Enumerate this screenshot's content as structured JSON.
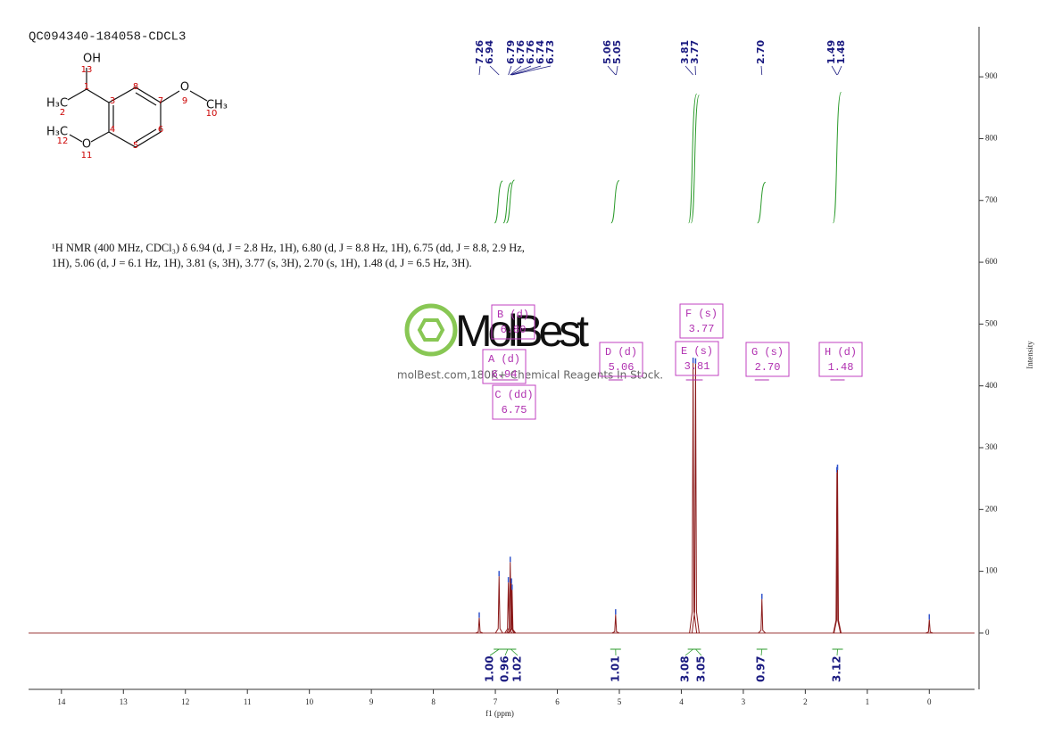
{
  "title": "QC094340-184058-CDCL3",
  "description": [
    "¹H NMR (400 MHz, CDCl₃) δ 6.94 (d, J = 2.8 Hz, 1H), 6.80 (d, J = 8.8 Hz, 1H), 6.75 (dd, J = 8.8, 2.9 Hz,",
    "1H), 5.06 (d, J = 6.1 Hz, 1H), 3.81 (s, 3H), 3.77 (s, 3H), 2.70 (s, 1H), 1.48 (d, J = 6.5 Hz, 3H)."
  ],
  "structure": {
    "atoms": [
      "OH",
      "13",
      "1",
      "H₃C",
      "2",
      "3",
      "8",
      "7",
      "O",
      "9",
      "CH₃",
      "10",
      "H₃C",
      "12",
      "4",
      "6",
      "O",
      "11",
      "5"
    ]
  },
  "watermark": {
    "brand": "MolBest",
    "tagline": "molBest.com,180K+ Chemical Reagents In Stock."
  },
  "chart_data": {
    "type": "spectrum",
    "xlabel": "f1 (ppm)",
    "ylabel": "Intensity",
    "color": "#8b1a1a",
    "x": [
      7.26,
      6.94,
      6.79,
      6.76,
      6.74,
      6.73,
      5.06,
      3.81,
      3.77,
      2.7,
      1.49,
      1.48,
      0
    ],
    "values": [
      25,
      92,
      82,
      115,
      80,
      70,
      30,
      437,
      436,
      55,
      260,
      264,
      22
    ],
    "xlim": [
      14.53,
      -0.73
    ],
    "xticks": [
      14,
      13,
      12,
      11,
      10,
      9,
      8,
      7,
      6,
      5,
      4,
      3,
      2,
      1,
      0
    ],
    "ylim": [
      -91,
      981
    ],
    "yticks": [
      0,
      100,
      200,
      300,
      400,
      500,
      600,
      700,
      800,
      900
    ],
    "peak_labels": {
      "values": [
        7.26,
        6.94,
        6.79,
        6.76,
        6.76,
        6.74,
        6.73,
        5.06,
        5.05,
        3.81,
        3.77,
        2.7,
        1.49,
        1.48
      ],
      "value_labels": [
        "7.26",
        "6.94",
        "6.79",
        "6.76",
        "6.76",
        "6.74",
        "6.73",
        "5.06",
        "5.05",
        "3.81",
        "3.77",
        "2.70",
        "1.49",
        "1.48"
      ]
    },
    "integrals": {
      "x": [
        6.94,
        6.8,
        6.75,
        5.06,
        3.81,
        3.77,
        2.7,
        1.48
      ],
      "values": [
        1.0,
        0.96,
        1.02,
        1.01,
        3.08,
        3.05,
        0.97,
        3.12
      ],
      "value_labels": [
        "1.00",
        "0.96",
        "1.02",
        "1.01",
        "3.08",
        "3.05",
        "0.97",
        "3.12"
      ]
    },
    "multiplets": {
      "names": [
        "A (d)",
        "B (d)",
        "C (dd)",
        "D (d)",
        "E (s)",
        "F (s)",
        "G (s)",
        "H (d)"
      ],
      "shifts": [
        6.94,
        6.8,
        6.75,
        5.06,
        3.81,
        3.77,
        2.7,
        1.48
      ],
      "shift_labels": [
        "6.94",
        "6.80",
        "6.75",
        "5.06",
        "3.81",
        "3.77",
        "2.70",
        "1.48"
      ]
    }
  }
}
